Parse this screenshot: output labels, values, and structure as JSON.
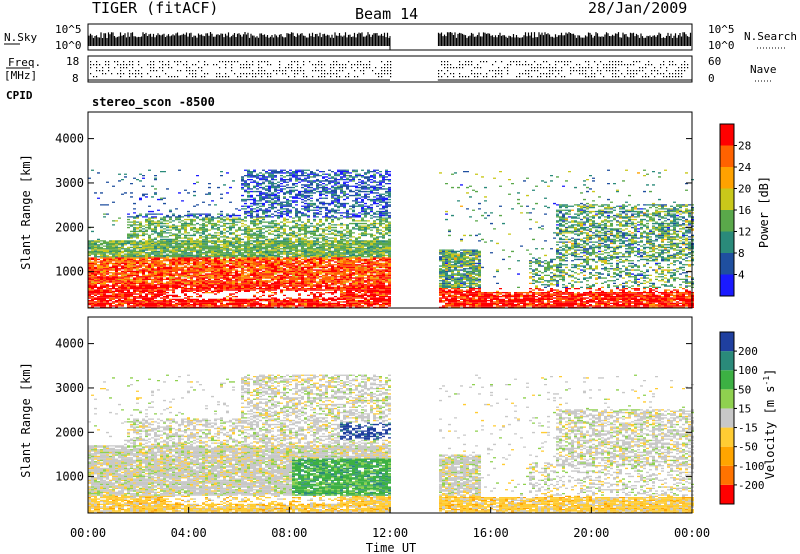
{
  "header": {
    "title": "TIGER (fitACF)",
    "beam": "Beam 14",
    "date": "28/Jan/2009"
  },
  "chart_data": [
    {
      "type": "line",
      "name": "noise-panel",
      "ylabel_left": "N.Sky",
      "ylabel_right": "N.Search",
      "yticks_left": [
        "10^5",
        "10^0"
      ],
      "yticks_right": [
        "10^5",
        "10^0"
      ],
      "gaps": [
        [
          12.0,
          13.9
        ]
      ]
    },
    {
      "type": "scatter",
      "name": "frequency-nave-panel",
      "ylabel_left": [
        "Freq.",
        "[MHz]"
      ],
      "ylabel_right": "Nave",
      "yticks_left": [
        "18",
        "8"
      ],
      "yticks_right": [
        "60",
        "0"
      ],
      "gaps": [
        [
          12.0,
          13.9
        ]
      ]
    },
    {
      "type": "table",
      "name": "cpid-panel",
      "label": "CPID",
      "value": "stereo_scon -8500"
    },
    {
      "type": "heatmap",
      "name": "power-panel",
      "ylabel": "Slant Range [km]",
      "yticks": [
        1000,
        2000,
        3000,
        4000
      ],
      "ylim": [
        180,
        4600
      ],
      "xlim": [
        0,
        24
      ],
      "colorbar": {
        "label": "Power [dB]",
        "ticks": [
          4,
          8,
          12,
          16,
          20,
          24,
          28
        ],
        "colors": [
          "#1a1aff",
          "#1f4f9f",
          "#2a8a7a",
          "#5aa84a",
          "#c9c81a",
          "#ffa200",
          "#ff6200",
          "#ff0000"
        ]
      },
      "gaps": [
        [
          12.0,
          13.9
        ]
      ]
    },
    {
      "type": "heatmap",
      "name": "velocity-panel",
      "ylabel": "Slant Range [km]",
      "yticks": [
        1000,
        2000,
        3000,
        4000
      ],
      "ylim": [
        180,
        4600
      ],
      "xlim": [
        0,
        24
      ],
      "xlabel": "Time UT",
      "xticks": [
        "00:00",
        "04:00",
        "08:00",
        "12:00",
        "16:00",
        "20:00",
        "00:00"
      ],
      "xtick_values": [
        0,
        4,
        8,
        12,
        16,
        20,
        24
      ],
      "colorbar": {
        "label_main": "Velocity [m s",
        "label_sup": "-1",
        "label_end": "]",
        "ticks": [
          "-200",
          "-100",
          "-50",
          "-15",
          "15",
          "50",
          "100",
          "200"
        ],
        "colors": [
          "#ff0000",
          "#ff7300",
          "#ffa500",
          "#ffcc33",
          "#c8c8c8",
          "#8fd14f",
          "#3cb043",
          "#2a8a7a",
          "#1f3f9f"
        ]
      },
      "gaps": [
        [
          12.0,
          13.9
        ]
      ]
    }
  ]
}
